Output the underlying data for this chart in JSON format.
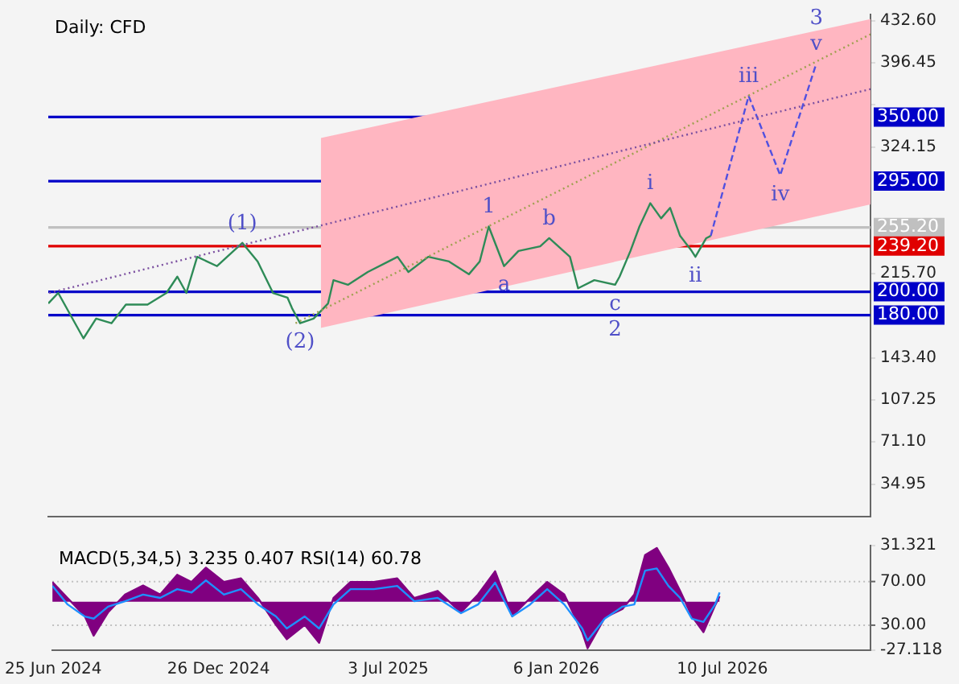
{
  "chart_data": [
    {
      "type": "line",
      "title": "Daily: CFD",
      "xlim": [
        "2024-06-24",
        "2026-12-22"
      ],
      "xticks": [
        {
          "value": "2024-06-25",
          "label": null
        },
        {
          "value": "2024-12-26",
          "label": null
        },
        {
          "value": "2025-07-03",
          "label": null
        },
        {
          "value": "2026-01-06",
          "label": null
        },
        {
          "value": "2026-07-10",
          "label": null
        }
      ],
      "tick_labels": "y",
      "ylim": [
        7,
        438
      ],
      "yticks": [
        {
          "value": 432.6,
          "label": "432.60"
        },
        396.45,
        {
          "value": 360.3,
          "label": null
        },
        324.15,
        {
          "value": 215.7,
          "label": "215.70"
        },
        {
          "value": 143.4,
          "label": "143.40"
        },
        107.25,
        {
          "value": 71.1,
          "label": "71.10"
        },
        34.95
      ],
      "grid": false,
      "legend": false,
      "marker": "none",
      "series": [
        {
          "color": "#ffb6c1",
          "x": [
            "2025-04-22",
            "2026-12-22"
          ],
          "values": [
            null,
            null
          ],
          "lower": [
            169,
            275
          ],
          "upper": [
            332,
            434
          ]
        },
        {
          "color": "#7b4fa0",
          "line_style": "dotted",
          "x": [
            "2024-06-25",
            "2026-12-22"
          ],
          "values": [
            199,
            374
          ]
        },
        {
          "color": "#a0a050",
          "line_style": "dotted",
          "x": [
            "2025-03-25",
            "2026-12-22"
          ],
          "values": [
            173,
            421
          ]
        },
        {
          "color": "#2e8b57",
          "x": [
            "2024-06-24",
            "2024-07-05",
            "2024-08-02",
            "2024-08-16",
            "2024-09-02",
            "2024-09-18",
            "2024-10-12",
            "2024-11-02",
            "2024-11-14",
            "2024-11-24",
            "2024-12-06",
            "2024-12-28",
            "2025-01-25",
            "2025-02-11",
            "2025-02-28",
            "2025-03-16",
            "2025-03-21",
            "2025-03-30",
            "2025-04-14",
            "2025-04-30",
            "2025-05-06",
            "2025-05-22",
            "2025-06-13",
            "2025-07-06",
            "2025-07-16",
            "2025-07-28",
            "2025-08-19",
            "2025-09-11",
            "2025-10-03",
            "2025-10-15",
            "2025-10-25",
            "2025-11-11",
            "2025-11-27",
            "2025-12-21",
            "2025-12-31",
            "2026-01-23",
            "2026-02-01",
            "2026-02-19",
            "2026-03-14",
            "2026-03-19",
            "2026-03-31",
            "2026-04-10",
            "2026-04-22",
            "2026-05-04",
            "2026-05-14",
            "2026-05-25",
            "2026-06-06",
            "2026-06-11",
            "2026-06-23",
            "2026-06-28"
          ],
          "values": [
            190,
            199,
            160,
            177,
            173,
            189,
            189,
            199,
            213,
            199,
            230,
            222,
            242,
            226,
            199,
            195,
            186,
            173,
            177,
            190,
            210,
            206,
            217,
            226,
            230,
            217,
            230,
            226,
            215,
            226,
            256,
            222,
            235,
            239,
            246,
            230,
            203,
            210,
            206,
            213,
            235,
            256,
            276,
            263,
            272,
            248,
            236,
            230,
            246,
            248
          ]
        },
        {
          "color": "#5050e0",
          "line_style": "dashed",
          "x": [
            "2026-06-28",
            "2026-08-09",
            "2026-09-13",
            "2026-10-23"
          ],
          "values": [
            248,
            368,
            300,
            396
          ]
        }
      ],
      "ref_lines": [
        {
          "axis": "y",
          "value": 350,
          "label": "350.00",
          "color": "#0000c8"
        },
        {
          "axis": "y",
          "value": 295,
          "label": "295.00",
          "color": "#0000c8"
        },
        {
          "axis": "y",
          "value": 255.2,
          "label": "255.20",
          "color": "#c0c0c0"
        },
        {
          "axis": "y",
          "value": 239.2,
          "label": "239.20",
          "color": "#e00000"
        },
        {
          "axis": "y",
          "value": 200,
          "label": "200.00",
          "color": "#0000c8"
        },
        {
          "axis": "y",
          "value": 180,
          "label": "180.00",
          "color": "#0000c8"
        }
      ],
      "annotations": [
        {
          "text": "a",
          "x": "2025-11-11",
          "y": 222
        },
        {
          "text": "b",
          "x": "2025-12-31",
          "y": 246
        },
        {
          "text": "c",
          "x": "2026-03-14",
          "y": 206
        },
        {
          "text": "i",
          "x": "2026-04-22",
          "y": 276
        },
        {
          "text": "ii",
          "x": "2026-06-11",
          "y": 230
        },
        {
          "text": "iii",
          "x": "2026-08-09",
          "y": 368
        },
        {
          "text": "iv",
          "x": "2026-09-13",
          "y": 300
        },
        {
          "text": "v",
          "x": "2026-10-23",
          "y": 396
        },
        {
          "text": "(1)",
          "x": "2025-01-25",
          "y": 242
        },
        {
          "text": "(2)",
          "x": "2025-03-30",
          "y": 173
        },
        {
          "text": "1",
          "x": "2025-10-25",
          "y": 256
        },
        {
          "text": "2",
          "x": "2026-03-14",
          "y": 206
        },
        {
          "text": "3",
          "x": "2026-10-23",
          "y": 396
        }
      ]
    },
    {
      "type": "area",
      "title": "MACD(5,34,5) 3.235 0.407 RSI(14) 60.78",
      "xlim": [
        "2024-06-24",
        "2026-12-22"
      ],
      "xticks": [
        {
          "value": "2024-06-25",
          "label": "25 Jun 2024"
        },
        {
          "value": "2024-12-26",
          "label": "26 Dec 2024"
        },
        {
          "value": "2025-07-03",
          "label": "3 Jul 2025"
        },
        {
          "value": "2026-01-06",
          "label": "6 Jan 2026"
        },
        {
          "value": "2026-07-10",
          "label": "10 Jul 2026"
        }
      ],
      "ylim": [
        -27.118,
        31.321
      ],
      "yticks": [
        31.321,
        -27.118
      ],
      "y2lim": [
        7.1,
        102.9
      ],
      "y2ticks": [
        {
          "value": 70,
          "label": "70.00"
        },
        {
          "value": 30,
          "label": "30.00"
        }
      ],
      "grid": false,
      "legend": false,
      "marker": "none",
      "x": [
        "2024-06-24",
        "2024-07-11",
        "2024-07-30",
        "2024-08-09",
        "2024-08-25",
        "2024-09-13",
        "2024-10-03",
        "2024-10-22",
        "2024-11-10",
        "2024-11-26",
        "2024-12-12",
        "2025-01-01",
        "2025-01-20",
        "2025-02-08",
        "2025-02-28",
        "2025-03-12",
        "2025-04-01",
        "2025-04-17",
        "2025-05-03",
        "2025-05-22",
        "2025-06-17",
        "2025-07-13",
        "2025-08-01",
        "2025-08-27",
        "2025-09-22",
        "2025-10-11",
        "2025-10-30",
        "2025-11-18",
        "2025-12-08",
        "2025-12-27",
        "2026-01-15",
        "2026-02-04",
        "2026-02-10",
        "2026-03-01",
        "2026-03-21",
        "2026-04-03",
        "2026-04-15",
        "2026-04-28",
        "2026-05-11",
        "2026-05-24",
        "2026-06-06",
        "2026-06-19",
        "2026-07-02",
        "2026-07-07"
      ],
      "series": [
        {
          "color": "#800080",
          "values": [
            11,
            2,
            -8,
            -19,
            -6,
            4,
            9,
            4,
            15,
            11,
            19,
            11,
            13,
            2,
            -13,
            -21,
            -13,
            -23,
            2,
            11,
            11,
            13,
            2,
            6,
            -6,
            4,
            17,
            -8,
            2,
            11,
            4,
            -17,
            -26,
            -9,
            -4,
            4,
            26,
            30,
            19,
            6,
            -8,
            -17,
            -2,
            3
          ]
        },
        {
          "type": "line",
          "axis": "y2",
          "color": "#1e90ff",
          "values": [
            66,
            49,
            38,
            36,
            47,
            52,
            58,
            55,
            63,
            60,
            71,
            58,
            63,
            49,
            38,
            27,
            38,
            27,
            49,
            63,
            63,
            66,
            52,
            55,
            41,
            49,
            69,
            38,
            49,
            63,
            49,
            27,
            16,
            36,
            47,
            49,
            80,
            82,
            66,
            55,
            36,
            33,
            49,
            60
          ]
        }
      ],
      "ref_lines": [
        {
          "axis": "y2",
          "value": 70,
          "color": "#c0c0c0",
          "line_style": "dotted"
        },
        {
          "axis": "y2",
          "value": 30,
          "color": "#c0c0c0",
          "line_style": "dotted"
        }
      ]
    }
  ]
}
